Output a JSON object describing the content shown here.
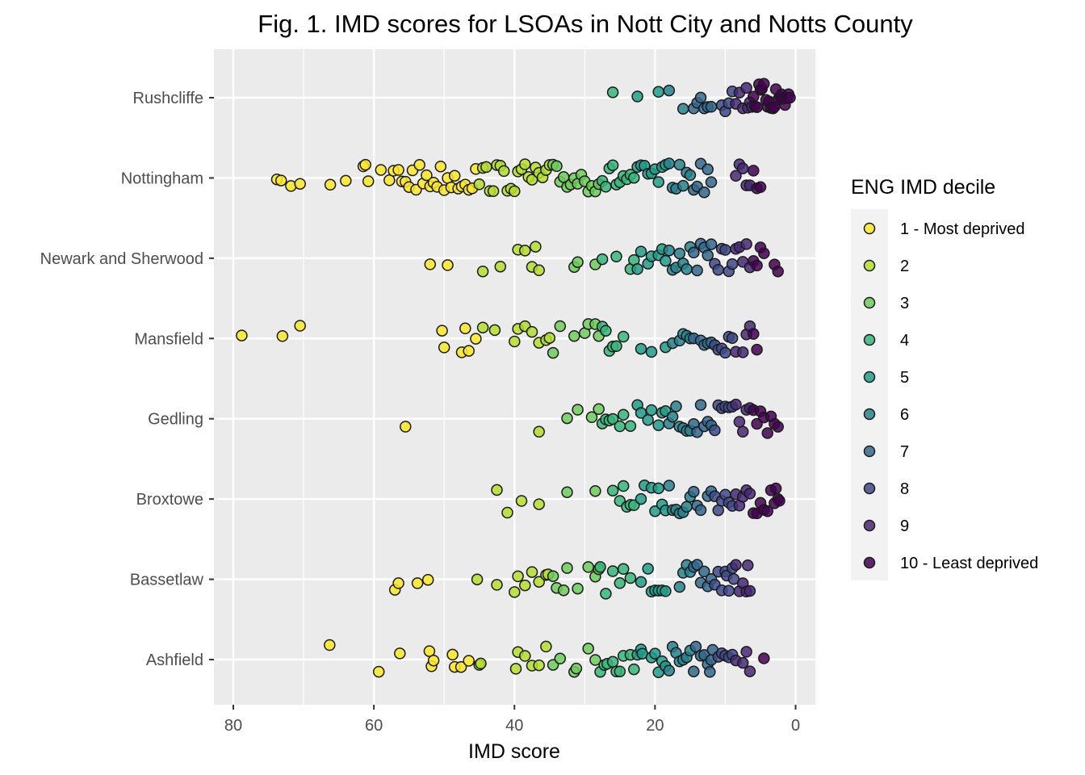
{
  "chart_data": {
    "type": "scatter",
    "title": "Fig. 1. IMD scores for LSOAs in Nott City and Notts County",
    "xlabel": "IMD score",
    "ylabel": "",
    "x_reversed": true,
    "xlim": [
      82,
      -3
    ],
    "x_ticks": [
      80,
      60,
      40,
      20,
      0
    ],
    "categories": [
      "Ashfield",
      "Bassetlaw",
      "Broxtowe",
      "Gedling",
      "Mansfield",
      "Newark and Sherwood",
      "Nottingham",
      "Rushcliffe"
    ],
    "jitter": true,
    "grid": true,
    "legend": {
      "title": "ENG IMD decile",
      "position": "right",
      "entries": [
        "1 - Most deprived",
        "2",
        "3",
        "4",
        "5",
        "6",
        "7",
        "8",
        "9",
        "10 - Least deprived"
      ],
      "colors": [
        "#FDE725",
        "#B4DE2C",
        "#6DCD59",
        "#35B779",
        "#1F9E89",
        "#26828E",
        "#31688E",
        "#3E4A89",
        "#482878",
        "#440154"
      ]
    },
    "decile_breaks": [
      45.3,
      34.6,
      27.8,
      22.6,
      18.4,
      14.8,
      11.5,
      8.6,
      6.0
    ],
    "series": [
      {
        "category": "Ashfield",
        "values": [
          66.3,
          59.3,
          56.3,
          52.1,
          51.8,
          51.5,
          48.8,
          48.5,
          47.6,
          46.5,
          45.0,
          44.8,
          39.8,
          39.5,
          38.5,
          37.5,
          36.5,
          35.5,
          34.5,
          33.5,
          31.5,
          31.2,
          29.5,
          28.5,
          27.8,
          27.2,
          26.8,
          26.0,
          25.5,
          25.0,
          24.5,
          23.5,
          23.0,
          22.5,
          22.0,
          21.8,
          20.5,
          20.0,
          19.5,
          19.0,
          18.5,
          18.0,
          17.5,
          17.0,
          16.5,
          16.0,
          15.5,
          15.0,
          14.5,
          14.2,
          13.5,
          13.0,
          12.5,
          12.2,
          12.0,
          11.8,
          11.0,
          10.5,
          10.0,
          9.5,
          9.0,
          8.5,
          7.5,
          7.0,
          6.5,
          4.5
        ]
      },
      {
        "category": "Bassetlaw",
        "values": [
          57.0,
          56.5,
          53.8,
          52.3,
          45.3,
          42.5,
          40.0,
          39.5,
          38.5,
          37.5,
          36.5,
          35.5,
          35.2,
          34.5,
          34.0,
          33.0,
          32.5,
          31.0,
          29.5,
          28.5,
          28.0,
          27.8,
          27.0,
          26.0,
          25.0,
          24.5,
          23.5,
          22.0,
          21.0,
          20.5,
          20.0,
          19.5,
          19.0,
          18.5,
          16.5,
          16.0,
          15.5,
          15.0,
          14.5,
          14.0,
          13.5,
          13.0,
          12.5,
          12.0,
          11.5,
          11.0,
          10.5,
          10.0,
          9.8,
          9.5,
          9.0,
          8.8,
          8.5,
          8.0,
          7.5,
          7.0,
          6.8,
          6.5
        ]
      },
      {
        "category": "Broxtowe",
        "values": [
          42.5,
          41.0,
          39.0,
          36.5,
          32.5,
          28.5,
          26.0,
          25.0,
          24.5,
          24.0,
          23.5,
          23.0,
          22.0,
          21.5,
          20.5,
          20.0,
          19.5,
          19.0,
          18.5,
          18.0,
          17.5,
          17.0,
          16.5,
          16.0,
          15.5,
          15.0,
          14.5,
          14.0,
          13.5,
          12.5,
          12.0,
          11.5,
          11.0,
          10.5,
          10.0,
          9.5,
          9.0,
          8.5,
          8.0,
          7.5,
          7.0,
          6.5,
          6.0,
          5.5,
          5.0,
          4.5,
          4.0,
          3.5,
          3.0,
          2.8,
          2.5,
          2.3
        ]
      },
      {
        "category": "Gedling",
        "values": [
          55.5,
          36.5,
          32.5,
          31.0,
          29.0,
          28.0,
          27.5,
          27.0,
          26.5,
          26.0,
          25.0,
          24.5,
          23.5,
          22.5,
          22.0,
          21.0,
          20.5,
          19.5,
          19.0,
          18.5,
          18.0,
          17.5,
          17.0,
          16.5,
          16.0,
          15.5,
          15.0,
          14.5,
          14.0,
          13.5,
          13.0,
          12.5,
          12.0,
          11.5,
          11.0,
          10.5,
          10.0,
          9.5,
          9.0,
          8.5,
          8.0,
          7.5,
          7.0,
          6.5,
          6.0,
          5.5,
          5.0,
          4.5,
          4.0,
          3.5,
          3.0,
          2.5
        ]
      },
      {
        "category": "Mansfield",
        "values": [
          78.8,
          73.0,
          70.5,
          50.3,
          50.0,
          47.5,
          47.0,
          46.5,
          45.5,
          44.5,
          42.8,
          40.0,
          39.5,
          38.5,
          37.5,
          36.5,
          35.5,
          35.0,
          34.5,
          33.5,
          31.5,
          30.0,
          29.5,
          28.5,
          28.0,
          27.5,
          27.0,
          26.5,
          26.0,
          25.5,
          24.5,
          22.0,
          20.5,
          18.5,
          17.5,
          16.5,
          16.0,
          15.5,
          15.0,
          14.5,
          13.5,
          13.0,
          12.5,
          12.0,
          11.5,
          11.0,
          10.5,
          10.0,
          9.5,
          9.0,
          8.5,
          7.5,
          7.0,
          6.5,
          6.0,
          5.5
        ]
      },
      {
        "category": "Newark and Sherwood",
        "values": [
          52.0,
          49.5,
          44.5,
          42.0,
          39.5,
          38.5,
          37.5,
          37.0,
          36.5,
          31.5,
          31.0,
          28.5,
          27.5,
          25.5,
          23.5,
          23.0,
          22.5,
          22.0,
          21.0,
          20.5,
          19.5,
          19.0,
          18.5,
          18.0,
          17.5,
          17.0,
          16.5,
          16.0,
          15.5,
          15.0,
          14.5,
          14.0,
          13.5,
          13.0,
          12.5,
          12.0,
          11.5,
          11.0,
          10.5,
          10.0,
          9.5,
          9.0,
          8.5,
          8.0,
          7.5,
          7.0,
          6.5,
          6.0,
          5.5,
          5.0,
          4.5,
          3.0,
          2.5
        ]
      },
      {
        "category": "Nottingham",
        "values": [
          73.8,
          73.2,
          71.8,
          70.5,
          66.2,
          64.0,
          61.5,
          61.2,
          60.8,
          59.0,
          57.8,
          57.2,
          56.5,
          56.0,
          55.5,
          55.0,
          54.5,
          54.0,
          53.5,
          53.0,
          52.5,
          52.0,
          51.5,
          51.0,
          50.5,
          50.0,
          49.5,
          49.0,
          48.5,
          48.0,
          47.5,
          47.0,
          46.5,
          46.0,
          45.5,
          45.0,
          44.5,
          44.0,
          43.5,
          43.0,
          42.5,
          42.0,
          41.5,
          41.0,
          40.5,
          40.0,
          39.5,
          39.0,
          38.5,
          38.0,
          37.5,
          37.0,
          36.5,
          36.0,
          35.5,
          35.0,
          34.5,
          34.0,
          33.5,
          33.0,
          32.5,
          32.0,
          31.5,
          31.0,
          30.5,
          30.0,
          29.5,
          29.0,
          28.5,
          28.0,
          27.5,
          27.0,
          26.5,
          26.0,
          25.5,
          25.0,
          24.5,
          24.0,
          23.5,
          23.0,
          22.5,
          22.0,
          21.5,
          21.0,
          20.5,
          20.0,
          19.5,
          19.0,
          18.5,
          18.0,
          17.5,
          17.0,
          16.5,
          16.0,
          15.5,
          15.0,
          14.5,
          14.0,
          13.5,
          13.0,
          12.5,
          12.0,
          8.5,
          8.0,
          7.5,
          7.0,
          6.5,
          6.0,
          5.5,
          5.0
        ]
      },
      {
        "category": "Rushcliffe",
        "values": [
          26.0,
          22.5,
          19.5,
          18.0,
          16.0,
          14.5,
          14.0,
          13.5,
          13.0,
          12.5,
          12.0,
          10.5,
          10.0,
          9.5,
          9.0,
          8.5,
          8.0,
          7.5,
          7.0,
          6.8,
          6.5,
          6.2,
          6.0,
          5.8,
          5.5,
          5.2,
          5.0,
          4.8,
          4.5,
          4.2,
          4.0,
          3.8,
          3.5,
          3.2,
          3.0,
          2.8,
          2.5,
          2.2,
          2.0,
          1.8,
          1.5,
          1.2,
          1.0,
          0.8
        ]
      }
    ]
  }
}
